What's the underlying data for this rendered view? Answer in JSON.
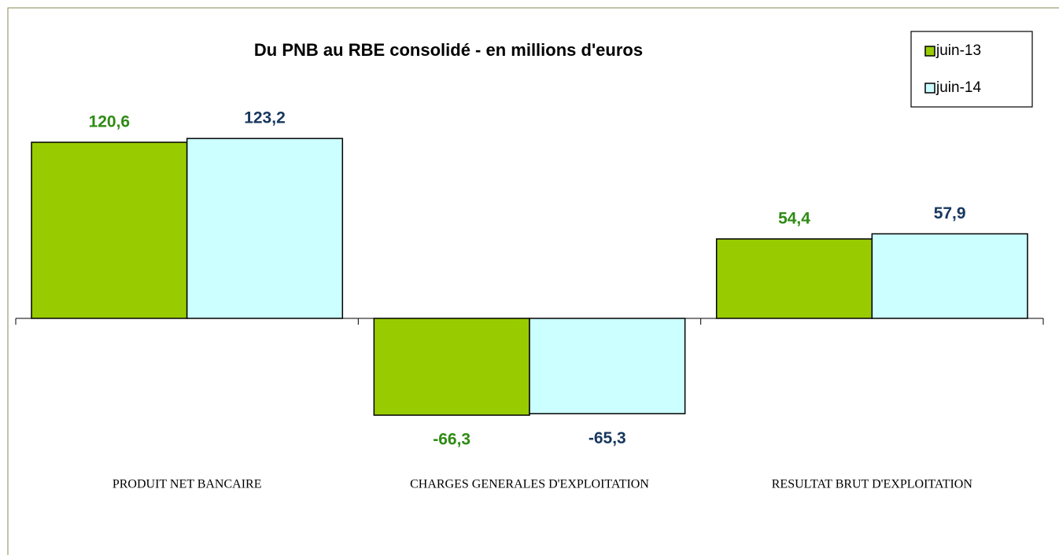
{
  "chart_data": {
    "type": "bar",
    "title": "Du PNB au RBE consolidé - en millions d'euros",
    "categories": [
      "PRODUIT NET BANCAIRE",
      "CHARGES GENERALES D'EXPLOITATION",
      "RESULTAT BRUT D'EXPLOITATION"
    ],
    "series": [
      {
        "name": "juin-13",
        "color": "#99cc00",
        "label_color": "#2e8b13",
        "values": [
          120.6,
          -66.3,
          54.4
        ],
        "value_labels": [
          "120,6",
          "-66,3",
          "54,4"
        ]
      },
      {
        "name": "juin-14",
        "color": "#ccffff",
        "label_color": "#17375e",
        "values": [
          123.2,
          -65.3,
          57.9
        ],
        "value_labels": [
          "123,2",
          "-65,3",
          "57,9"
        ]
      }
    ],
    "ylim": [
      -100,
      150
    ],
    "legend": "top-right"
  }
}
